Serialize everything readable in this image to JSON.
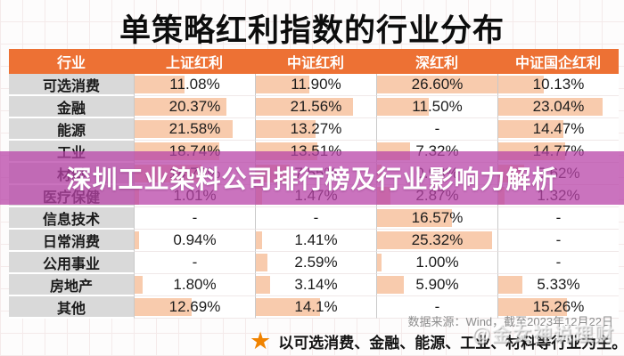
{
  "page_title": "单策略红利指数的行业分布",
  "banner": {
    "text": "深圳工业染料公司排行榜及行业影响力解析"
  },
  "source_note": "数据来源：Wind，截至2023年12月22日",
  "footer": {
    "icon": "star-icon",
    "text": "以可选消费、金融、能源、工业、材料等行业为主。"
  },
  "watermark": "@金女神说理财",
  "colors": {
    "header_bg": "#ED7134",
    "label_bg": "#D9D9D9",
    "bar": "#F8CBAD",
    "banner_bg": "rgba(184,68,168,0.75)",
    "star": "#F08300"
  },
  "chart_data": {
    "type": "table",
    "title": "单策略红利指数的行业分布",
    "columns": [
      "行业",
      "上证红利",
      "中证红利",
      "深红利",
      "中证国企红利"
    ],
    "bar_max_percent": 26.6,
    "rows": [
      {
        "industry": "可选消费",
        "values": [
          "11.08%",
          "11.90%",
          "26.60%",
          "10.13%"
        ]
      },
      {
        "industry": "金融",
        "values": [
          "20.37%",
          "21.56%",
          "11.50%",
          "23.04%"
        ]
      },
      {
        "industry": "能源",
        "values": [
          "21.58%",
          "13.27%",
          "-",
          "14.47%"
        ]
      },
      {
        "industry": "工业",
        "values": [
          "18.74%",
          "13.51%",
          "7.32%",
          "14.77%"
        ]
      },
      {
        "industry": "材料",
        "values": [
          "14.79%",
          "7.55%",
          "0.98%",
          "5.62%"
        ],
        "obscured_by_banner": true
      },
      {
        "industry": "医疗保健",
        "values": [
          "1.01%",
          "1.47%",
          "2.87%",
          "1.32%"
        ]
      },
      {
        "industry": "信息技术",
        "values": [
          "-",
          "-",
          "16.57%",
          "-"
        ]
      },
      {
        "industry": "日常消费",
        "values": [
          "0.94%",
          "1.41%",
          "25.32%",
          "-"
        ]
      },
      {
        "industry": "公用事业",
        "values": [
          "-",
          "2.59%",
          "1.00%",
          "-"
        ]
      },
      {
        "industry": "房地产",
        "values": [
          "1.80%",
          "3.14%",
          "5.90%",
          "5.33%"
        ]
      },
      {
        "industry": "其他",
        "values": [
          "12.69%",
          "14.1%",
          "-",
          "15.26%"
        ]
      }
    ]
  }
}
